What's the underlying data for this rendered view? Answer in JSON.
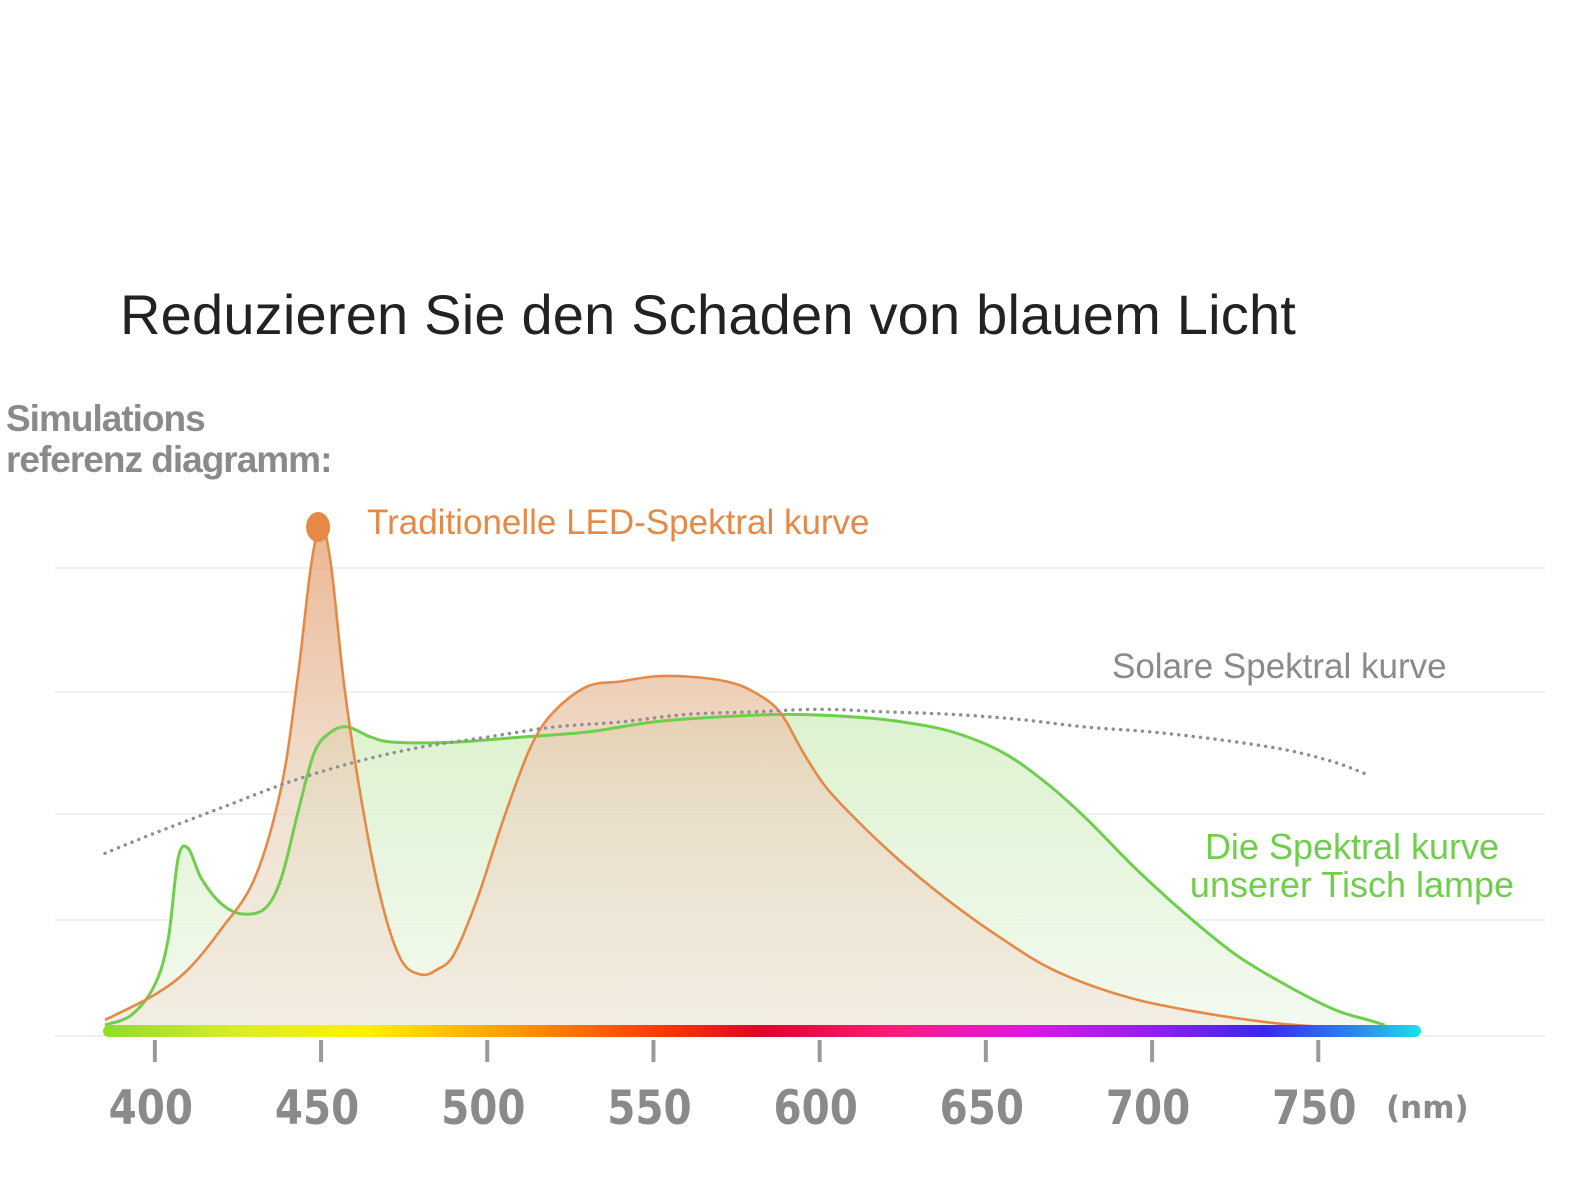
{
  "header": {
    "title": "Reduzieren Sie den Schaden von blauem Licht",
    "subtitle_line1": "Simulations",
    "subtitle_line2": "referenz diagramm:"
  },
  "colors": {
    "led_stroke": "#e58a46",
    "lamp_stroke": "#6fce4c",
    "solar_dots": "#8f8f8f",
    "tick_label": "#8a8a8a",
    "gridline": "#e6e6e6"
  },
  "chart_data": {
    "type": "line",
    "title": "Reduzieren Sie den Schaden von blauem Licht",
    "subtitle": "Simulations referenz diagramm:",
    "xlabel": "(nm)",
    "ylabel": "",
    "xlim": [
      385,
      780
    ],
    "ylim": [
      0,
      1
    ],
    "x_ticks": [
      400,
      450,
      500,
      550,
      600,
      650,
      700,
      750
    ],
    "x_unit": "(nm)",
    "grid": true,
    "legend": "inline labels",
    "spectrum_bar": true,
    "series": [
      {
        "name": "Traditionelle LED-Spektral kurve",
        "color": "#e58a46",
        "peak_marker": {
          "x": 450,
          "y": 1.0
        },
        "points": [
          [
            385,
            0.02
          ],
          [
            400,
            0.07
          ],
          [
            410,
            0.12
          ],
          [
            420,
            0.2
          ],
          [
            430,
            0.3
          ],
          [
            438,
            0.48
          ],
          [
            443,
            0.7
          ],
          [
            447,
            0.92
          ],
          [
            450,
            1.0
          ],
          [
            453,
            0.92
          ],
          [
            457,
            0.68
          ],
          [
            462,
            0.46
          ],
          [
            468,
            0.26
          ],
          [
            474,
            0.14
          ],
          [
            480,
            0.11
          ],
          [
            485,
            0.12
          ],
          [
            490,
            0.15
          ],
          [
            497,
            0.26
          ],
          [
            505,
            0.42
          ],
          [
            513,
            0.56
          ],
          [
            520,
            0.63
          ],
          [
            530,
            0.68
          ],
          [
            540,
            0.69
          ],
          [
            550,
            0.7
          ],
          [
            560,
            0.7
          ],
          [
            572,
            0.69
          ],
          [
            580,
            0.67
          ],
          [
            588,
            0.63
          ],
          [
            595,
            0.55
          ],
          [
            602,
            0.48
          ],
          [
            612,
            0.41
          ],
          [
            625,
            0.33
          ],
          [
            640,
            0.25
          ],
          [
            655,
            0.18
          ],
          [
            670,
            0.12
          ],
          [
            690,
            0.07
          ],
          [
            710,
            0.04
          ],
          [
            735,
            0.015
          ],
          [
            755,
            0.005
          ],
          [
            770,
            0.003
          ]
        ]
      },
      {
        "name": "Die Spektral kurve unserer Tisch lampe",
        "color": "#6fce4c",
        "points": [
          [
            385,
            0.01
          ],
          [
            393,
            0.03
          ],
          [
            400,
            0.09
          ],
          [
            404,
            0.18
          ],
          [
            407,
            0.34
          ],
          [
            410,
            0.36
          ],
          [
            414,
            0.3
          ],
          [
            420,
            0.25
          ],
          [
            426,
            0.23
          ],
          [
            433,
            0.24
          ],
          [
            438,
            0.3
          ],
          [
            443,
            0.43
          ],
          [
            448,
            0.55
          ],
          [
            453,
            0.59
          ],
          [
            458,
            0.6
          ],
          [
            465,
            0.58
          ],
          [
            472,
            0.57
          ],
          [
            490,
            0.57
          ],
          [
            510,
            0.58
          ],
          [
            530,
            0.59
          ],
          [
            550,
            0.61
          ],
          [
            570,
            0.62
          ],
          [
            590,
            0.625
          ],
          [
            610,
            0.62
          ],
          [
            625,
            0.61
          ],
          [
            640,
            0.59
          ],
          [
            655,
            0.55
          ],
          [
            668,
            0.49
          ],
          [
            680,
            0.42
          ],
          [
            695,
            0.32
          ],
          [
            710,
            0.23
          ],
          [
            725,
            0.15
          ],
          [
            740,
            0.09
          ],
          [
            755,
            0.04
          ],
          [
            765,
            0.02
          ],
          [
            770,
            0.01
          ]
        ]
      },
      {
        "name": "Solare Spektral kurve",
        "color": "#8f8f8f",
        "style": "dotted",
        "points": [
          [
            385,
            0.35
          ],
          [
            400,
            0.39
          ],
          [
            420,
            0.44
          ],
          [
            440,
            0.49
          ],
          [
            460,
            0.53
          ],
          [
            480,
            0.56
          ],
          [
            500,
            0.58
          ],
          [
            520,
            0.6
          ],
          [
            540,
            0.61
          ],
          [
            560,
            0.625
          ],
          [
            580,
            0.63
          ],
          [
            600,
            0.635
          ],
          [
            620,
            0.63
          ],
          [
            640,
            0.625
          ],
          [
            660,
            0.615
          ],
          [
            680,
            0.6
          ],
          [
            700,
            0.59
          ],
          [
            720,
            0.575
          ],
          [
            740,
            0.555
          ],
          [
            755,
            0.53
          ],
          [
            765,
            0.505
          ]
        ]
      }
    ],
    "labels": {
      "led": "Traditionelle LED-Spektral kurve",
      "solar": "Solare Spektral kurve",
      "lamp_line1": "Die Spektral kurve",
      "lamp_line2": "unserer Tisch lampe"
    }
  }
}
